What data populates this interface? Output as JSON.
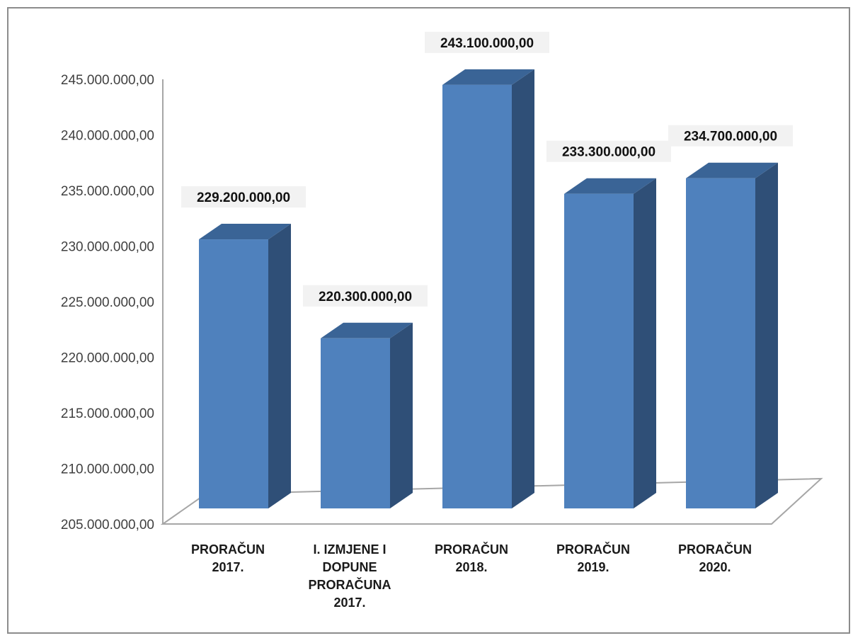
{
  "chart_data": {
    "type": "bar",
    "style": "3d-column",
    "categories": [
      [
        "PRORAČUN",
        "2017."
      ],
      [
        "I. IZMJENE I",
        "DOPUNE",
        "PRORAČUNA",
        "2017."
      ],
      [
        "PRORAČUN",
        "2018."
      ],
      [
        "PRORAČUN",
        "2019."
      ],
      [
        "PRORAČUN",
        "2020."
      ]
    ],
    "values": [
      229200000,
      220300000,
      243100000,
      233300000,
      234700000
    ],
    "data_labels": [
      "229.200.000,00",
      "220.300.000,00",
      "243.100.000,00",
      "233.300.000,00",
      "234.700.000,00"
    ],
    "y_ticks": [
      205000000,
      210000000,
      215000000,
      220000000,
      225000000,
      230000000,
      235000000,
      240000000,
      245000000
    ],
    "y_tick_labels": [
      "205.000.000,00",
      "210.000.000,00",
      "215.000.000,00",
      "220.000.000,00",
      "225.000.000,00",
      "230.000.000,00",
      "235.000.000,00",
      "240.000.000,00",
      "245.000.000,00"
    ],
    "ylim": [
      205000000,
      245000000
    ],
    "title": "",
    "xlabel": "",
    "ylabel": "",
    "grid": false,
    "legend": "none",
    "colors": {
      "front": "#4f81bd",
      "side": "#2f4f77",
      "top": "#3a6496",
      "label_bg": "#f2f2f2",
      "axis": "#a6a6a6"
    }
  }
}
